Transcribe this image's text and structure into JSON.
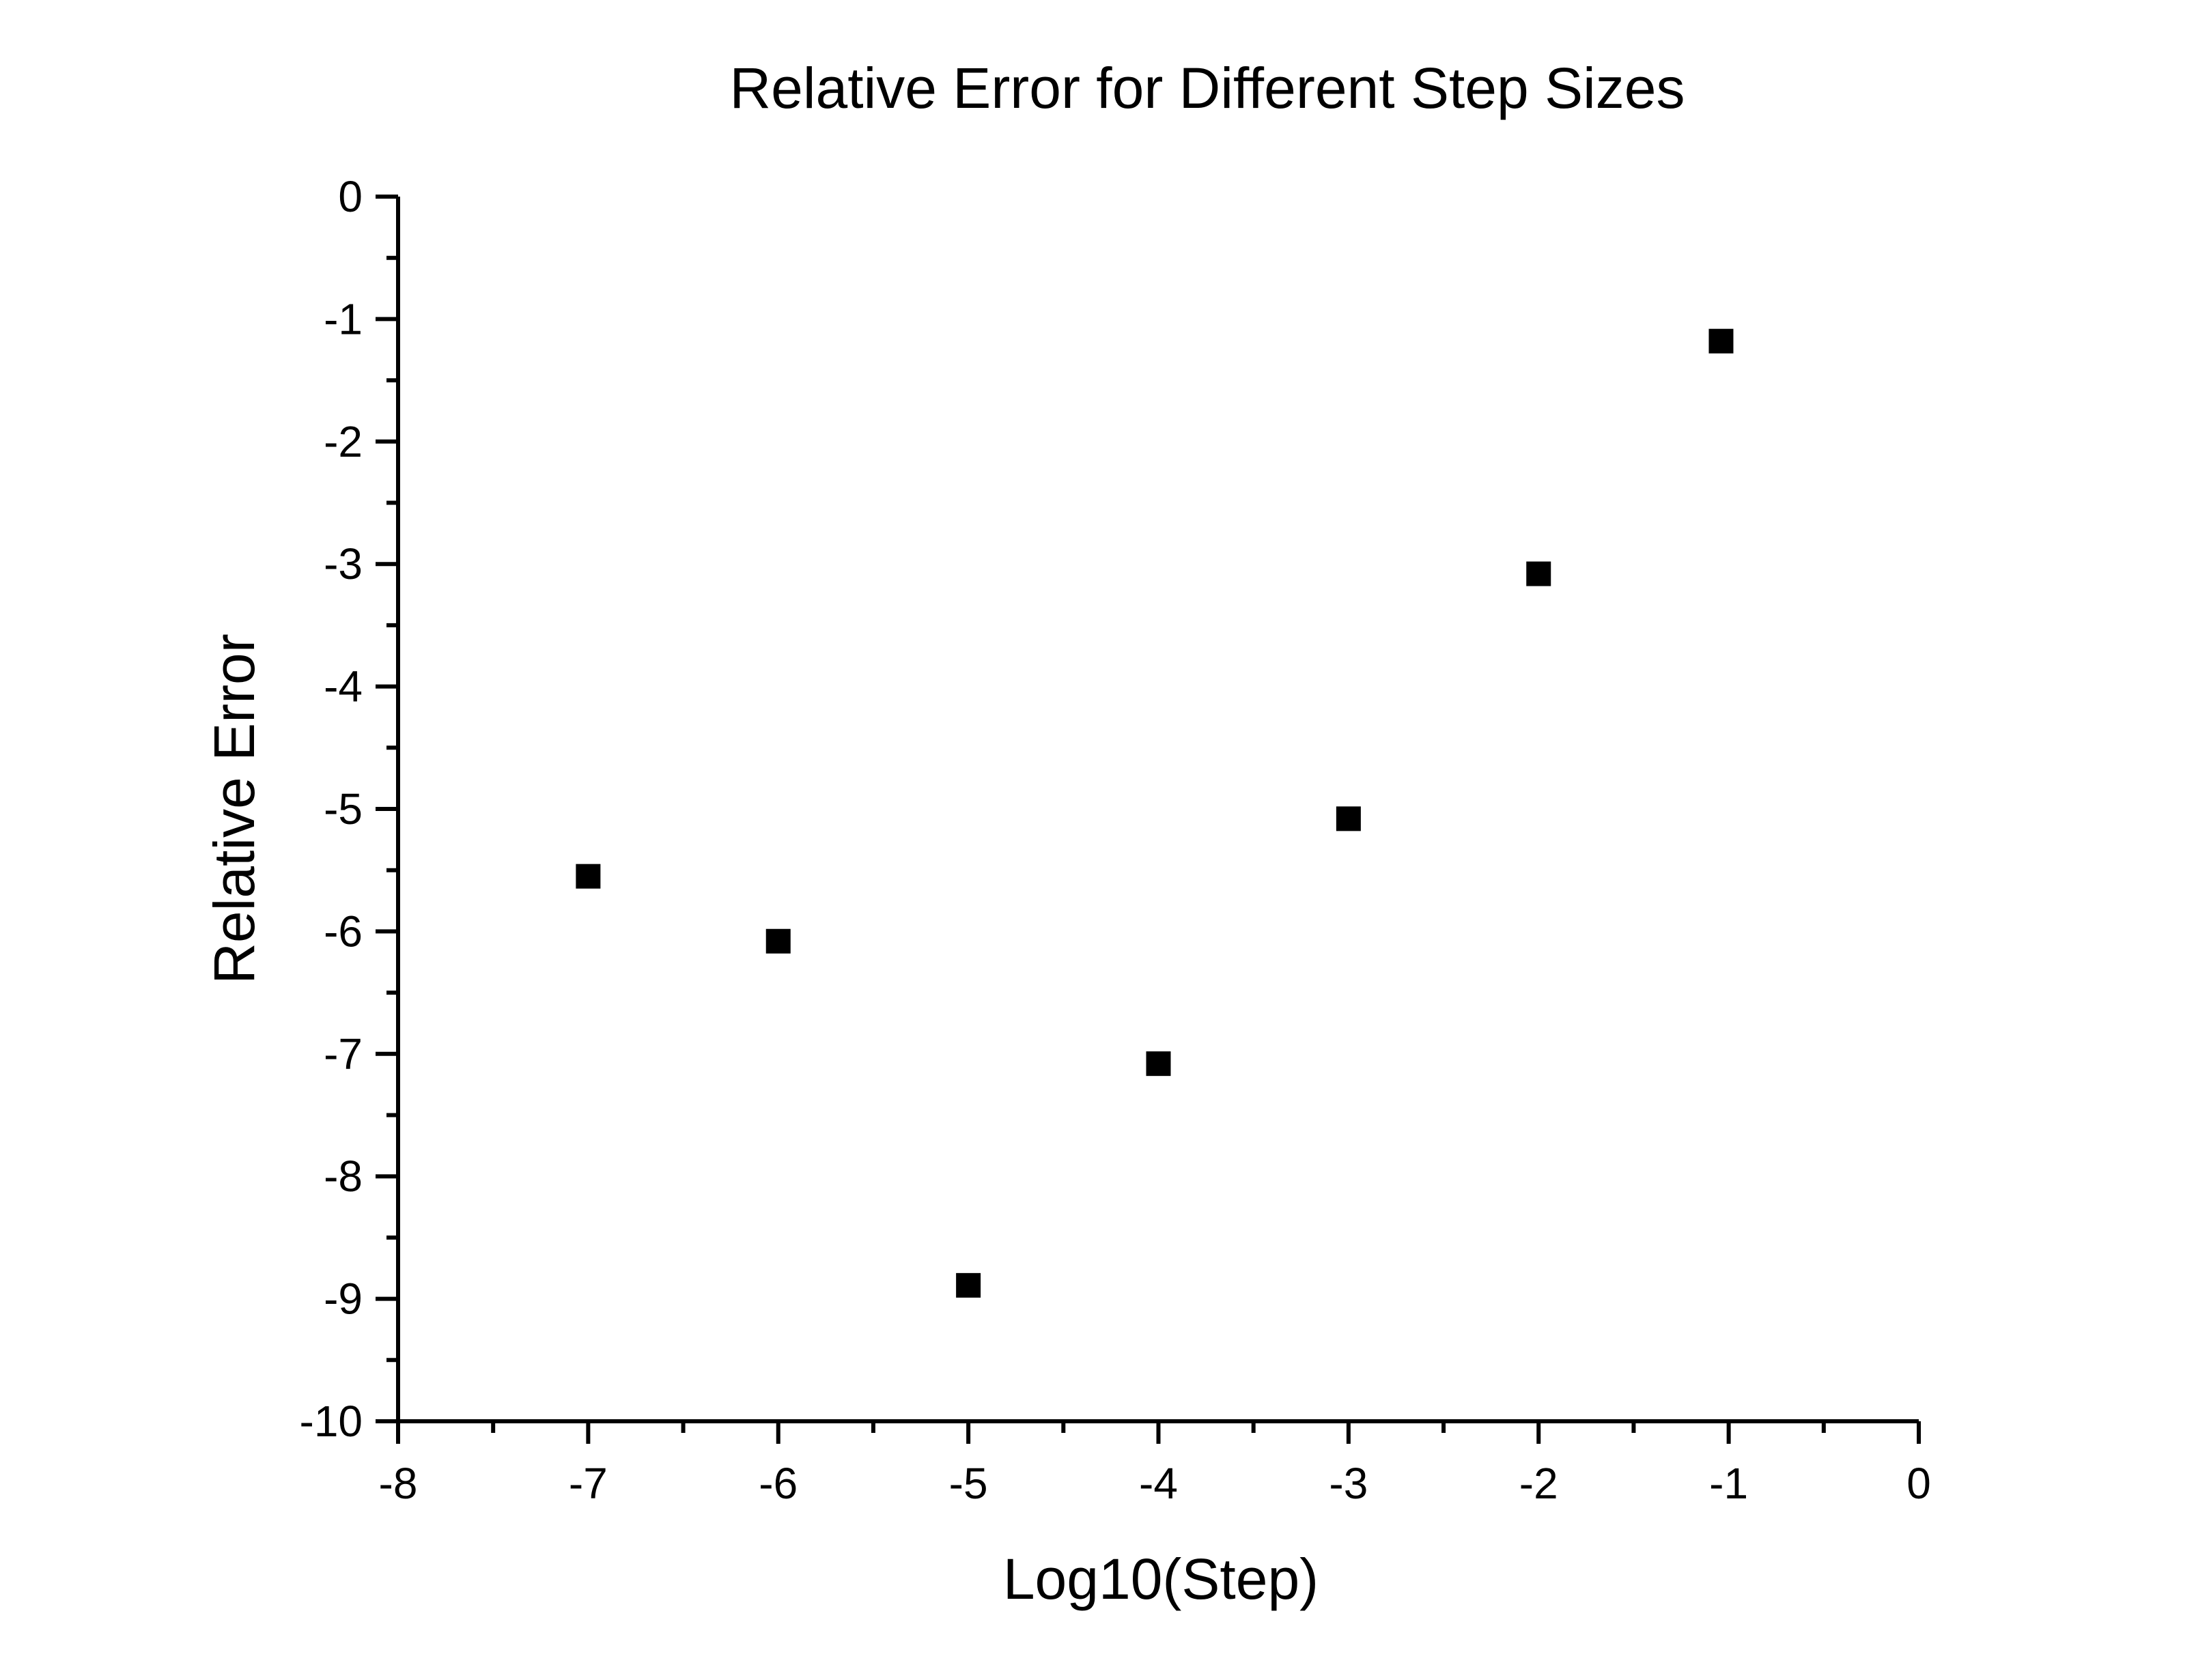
{
  "chart_data": {
    "type": "scatter",
    "title": "Relative Error for Different Step Sizes",
    "xlabel": "Log10(Step)",
    "ylabel": "Relative Error",
    "xlim": [
      -8,
      0
    ],
    "ylim": [
      -10,
      0
    ],
    "x_ticks": [
      -8,
      -7,
      -6,
      -5,
      -4,
      -3,
      -2,
      -1,
      0
    ],
    "y_ticks": [
      0,
      -1,
      -2,
      -3,
      -4,
      -5,
      -6,
      -7,
      -8,
      -9,
      -10
    ],
    "x_tick_labels": [
      "-8",
      "-7",
      "-6",
      "-5",
      "-4",
      "-3",
      "-2",
      "-1",
      "0"
    ],
    "y_tick_labels": [
      "0",
      "-1",
      "-2",
      "-3",
      "-4",
      "-5",
      "-6",
      "-7",
      "-8",
      "-9",
      "-10"
    ],
    "grid": false,
    "marker": "square",
    "marker_color": "#000000",
    "axis_color": "#000000",
    "background": "#ffffff",
    "series": [
      {
        "x": [
          -7,
          -6,
          -5,
          -4,
          -3,
          -2,
          -1.04
        ],
        "y": [
          -5.55,
          -6.08,
          -8.89,
          -7.08,
          -5.08,
          -3.08,
          -1.18
        ]
      }
    ]
  }
}
